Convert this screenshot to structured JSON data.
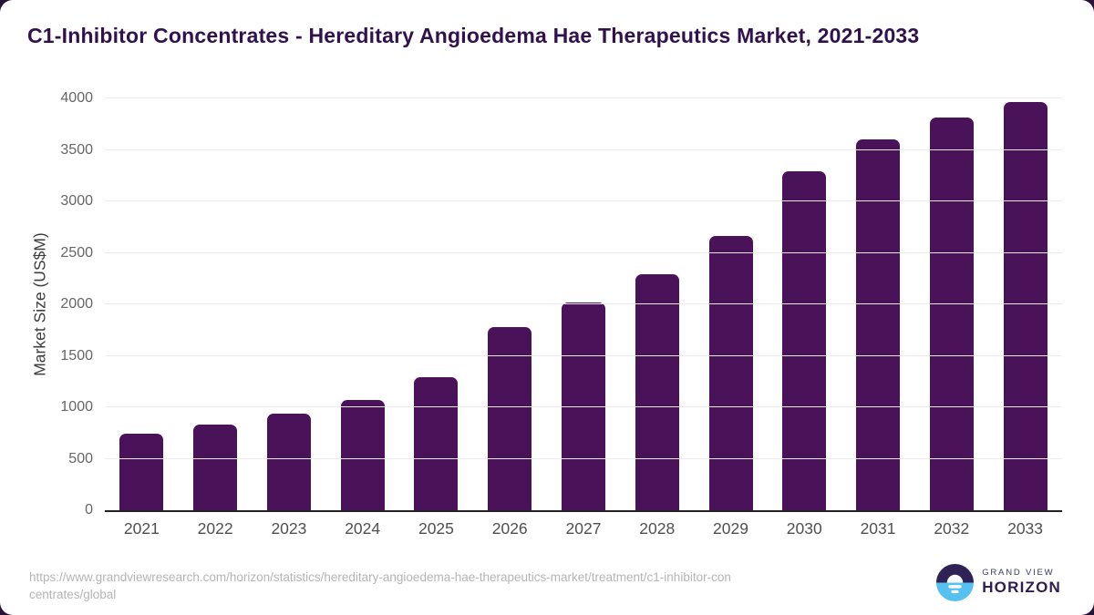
{
  "chart_data": {
    "type": "bar",
    "title": "C1-Inhibitor Concentrates - Hereditary Angioedema Hae Therapeutics Market, 2021-2033",
    "xlabel": "",
    "ylabel": "Market Size (US$M)",
    "categories": [
      "2021",
      "2022",
      "2023",
      "2024",
      "2025",
      "2026",
      "2027",
      "2028",
      "2029",
      "2030",
      "2031",
      "2032",
      "2033"
    ],
    "values": [
      740,
      830,
      940,
      1075,
      1295,
      1780,
      2020,
      2290,
      2660,
      3290,
      3600,
      3810,
      3965
    ],
    "ylim": [
      0,
      4000
    ],
    "yticks": [
      0,
      500,
      1000,
      1500,
      2000,
      2500,
      3000,
      3500,
      4000
    ],
    "grid": true,
    "legend": false,
    "bar_color": "#4a1258",
    "gridline_color": "#ebebeb",
    "axis_line_color": "#222222",
    "title_color": "#31114e"
  },
  "footer": {
    "url_lines": [
      "https://www.grandviewresearch.com/horizon/statistics/hereditary-angioedema-hae-therapeutics-market/treatment/c1-inhibitor-con",
      "centrates/global"
    ],
    "logo": {
      "brand_top": "GRAND VIEW",
      "brand_bottom": "HORIZON",
      "icon_name": "grand-view-horizon-logo",
      "navy": "#2f2257",
      "blue": "#55c1f0"
    }
  }
}
